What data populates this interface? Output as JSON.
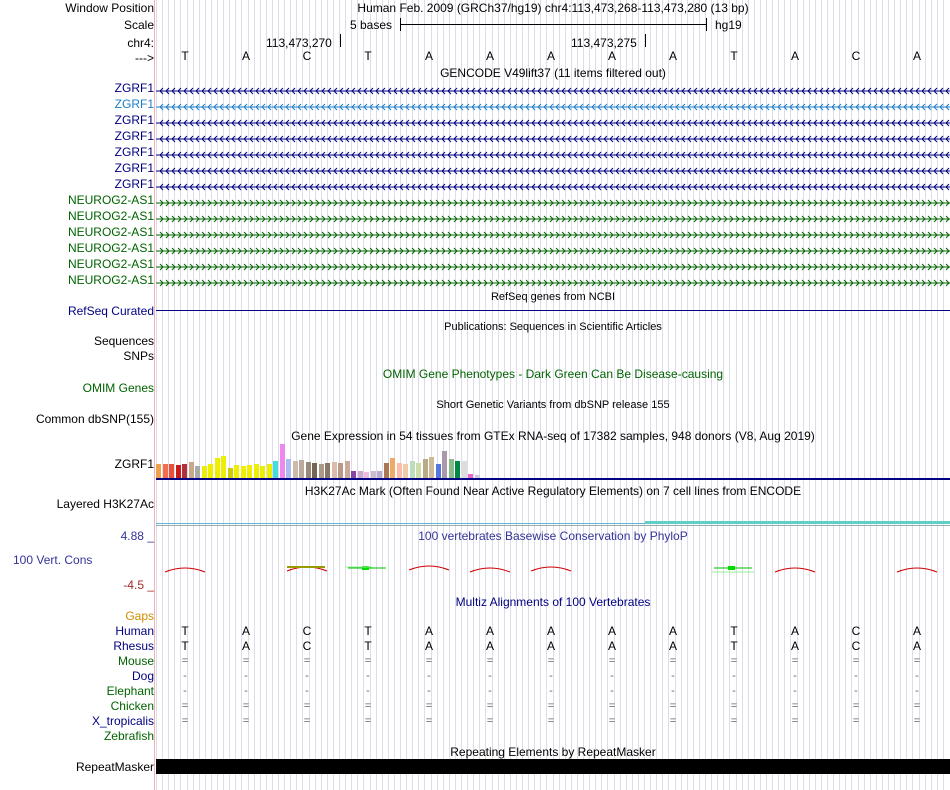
{
  "header": {
    "window_position_label": "Window Position",
    "scale_label": "Scale",
    "chr_label": "chr4:",
    "strand_label": "--->",
    "assembly_position": "Human Feb. 2009 (GRCh37/hg19)   chr4:113,473,268-113,473,280 (13 bp)",
    "scale_text": "5 bases",
    "scale_db": "hg19",
    "coord_1": "113,473,270",
    "coord_2": "113,473,275",
    "bases": [
      "T",
      "A",
      "C",
      "T",
      "A",
      "A",
      "A",
      "A",
      "A",
      "T",
      "A",
      "C",
      "A"
    ]
  },
  "gencode": {
    "title": "GENCODE V49lift37 (11 items filtered out)",
    "zgrf1_items": [
      "ZGRF1",
      "ZGRF1",
      "ZGRF1",
      "ZGRF1",
      "ZGRF1",
      "ZGRF1",
      "ZGRF1"
    ],
    "neurog_items": [
      "NEUROG2-AS1",
      "NEUROG2-AS1",
      "NEUROG2-AS1",
      "NEUROG2-AS1",
      "NEUROG2-AS1",
      "NEUROG2-AS1"
    ]
  },
  "refseq": {
    "title": "RefSeq genes from NCBI",
    "label": "RefSeq Curated"
  },
  "publications": {
    "title": "Publications: Sequences in Scientific Articles",
    "label_1": "Sequences",
    "label_2": "SNPs"
  },
  "omim": {
    "title": "OMIM Gene Phenotypes - Dark Green Can Be Disease-causing",
    "label": "OMIM Genes"
  },
  "dbsnp": {
    "title": "Short Genetic Variants from dbSNP release 155",
    "label": "Common dbSNP(155)"
  },
  "gtex": {
    "title": "Gene Expression in 54 tissues from GTEx RNA-seq of 17382 samples, 948 donors (V8, Aug 2019)",
    "label": "ZGRF1",
    "bars": [
      {
        "value": 0.4,
        "color": "#f0a04c"
      },
      {
        "value": 0.4,
        "color": "#f06e4b"
      },
      {
        "value": 0.42,
        "color": "#e8503c"
      },
      {
        "value": 0.38,
        "color": "#c91a1a"
      },
      {
        "value": 0.4,
        "color": "#b0303c"
      },
      {
        "value": 0.48,
        "color": "#c8a888"
      },
      {
        "value": 0.35,
        "color": "#aaaaaa"
      },
      {
        "value": 0.35,
        "color": "#eeee00"
      },
      {
        "value": 0.42,
        "color": "#eeee00"
      },
      {
        "value": 0.6,
        "color": "#eeee00"
      },
      {
        "value": 0.65,
        "color": "#eeee00"
      },
      {
        "value": 0.3,
        "color": "#cccc00"
      },
      {
        "value": 0.38,
        "color": "#eeee00"
      },
      {
        "value": 0.35,
        "color": "#eeee00"
      },
      {
        "value": 0.38,
        "color": "#eeee00"
      },
      {
        "value": 0.4,
        "color": "#eeee00"
      },
      {
        "value": 0.35,
        "color": "#eeee00"
      },
      {
        "value": 0.42,
        "color": "#eeee00"
      },
      {
        "value": 0.5,
        "color": "#44dddd"
      },
      {
        "value": 1.0,
        "color": "#ee88ee"
      },
      {
        "value": 0.55,
        "color": "#aabbee"
      },
      {
        "value": 0.5,
        "color": "#ccbbaa"
      },
      {
        "value": 0.52,
        "color": "#bbaa99"
      },
      {
        "value": 0.48,
        "color": "#998877"
      },
      {
        "value": 0.45,
        "color": "#776655"
      },
      {
        "value": 0.4,
        "color": "#aa9988"
      },
      {
        "value": 0.45,
        "color": "#887766"
      },
      {
        "value": 0.48,
        "color": "#ddbbaa"
      },
      {
        "value": 0.45,
        "color": "#bb9988"
      },
      {
        "value": 0.5,
        "color": "#ccaa99"
      },
      {
        "value": 0.22,
        "color": "#8844aa"
      },
      {
        "value": 0.2,
        "color": "#ccaacc"
      },
      {
        "value": 0.18,
        "color": "#eebbdd"
      },
      {
        "value": 0.2,
        "color": "#ccbbcc"
      },
      {
        "value": 0.22,
        "color": "#bbaacc"
      },
      {
        "value": 0.45,
        "color": "#aa7755"
      },
      {
        "value": 0.58,
        "color": "#eeaa66"
      },
      {
        "value": 0.45,
        "color": "#ffbbaa"
      },
      {
        "value": 0.4,
        "color": "#eeccaa"
      },
      {
        "value": 0.5,
        "color": "#bbddbb"
      },
      {
        "value": 0.45,
        "color": "#ccddaa"
      },
      {
        "value": 0.55,
        "color": "#bbaa88"
      },
      {
        "value": 0.62,
        "color": "#ccbb99"
      },
      {
        "value": 0.42,
        "color": "#5577dd"
      },
      {
        "value": 0.78,
        "color": "#aa99aa"
      },
      {
        "value": 0.55,
        "color": "#88bb88"
      },
      {
        "value": 0.5,
        "color": "#008844"
      },
      {
        "value": 0.5,
        "color": "#dddddd"
      },
      {
        "value": 0.12,
        "color": "#ee66cc"
      },
      {
        "value": 0.1,
        "color": "#ccccdd"
      }
    ]
  },
  "h3k27ac": {
    "title": "H3K27Ac Mark (Often Found Near Active Regulatory Elements) on 7 cell lines from ENCODE",
    "label": "Layered H3K27Ac"
  },
  "phylop": {
    "title": "100 vertebrates Basewise Conservation by PhyloP",
    "label": "100 Vert. Cons",
    "max_label": "4.88 _",
    "min_label": "-4.5 _",
    "scores": [
      -0.4,
      0.0,
      -0.2,
      0.5,
      -0.1,
      -0.4,
      -0.2,
      0.0,
      0.0,
      0.6,
      -0.4,
      0.0,
      -0.4
    ]
  },
  "multiz": {
    "title": "Multiz Alignments of 100 Vertebrates",
    "gaps_label": "Gaps",
    "species": [
      {
        "name": "Human",
        "color": "#000080",
        "bases": [
          "T",
          "A",
          "C",
          "T",
          "A",
          "A",
          "A",
          "A",
          "A",
          "T",
          "A",
          "C",
          "A"
        ]
      },
      {
        "name": "Rhesus",
        "color": "#000080",
        "bases": [
          "T",
          "A",
          "C",
          "T",
          "A",
          "A",
          "A",
          "A",
          "A",
          "T",
          "A",
          "C",
          "A"
        ]
      },
      {
        "name": "Mouse",
        "color": "#006400",
        "bases": [
          "=",
          "=",
          "=",
          "=",
          "=",
          "=",
          "=",
          "=",
          "=",
          "=",
          "=",
          "=",
          "="
        ]
      },
      {
        "name": "Dog",
        "color": "#000080",
        "bases": [
          "-",
          "-",
          "-",
          "-",
          "-",
          "-",
          "-",
          "-",
          "-",
          "-",
          "-",
          "-",
          "-"
        ]
      },
      {
        "name": "Elephant",
        "color": "#006400",
        "bases": [
          "-",
          "-",
          "-",
          "-",
          "-",
          "-",
          "-",
          "-",
          "-",
          "-",
          "-",
          "-",
          "-"
        ]
      },
      {
        "name": "Chicken",
        "color": "#006400",
        "bases": [
          "=",
          "=",
          "=",
          "=",
          "=",
          "=",
          "=",
          "=",
          "=",
          "=",
          "=",
          "=",
          "="
        ]
      },
      {
        "name": "X_tropicalis",
        "color": "#000080",
        "bases": [
          "=",
          "=",
          "=",
          "=",
          "=",
          "=",
          "=",
          "=",
          "=",
          "=",
          "=",
          "=",
          "="
        ]
      },
      {
        "name": "Zebrafish",
        "color": "#006400",
        "bases": [
          "",
          "",
          "",
          "",
          "",
          "",
          "",
          "",
          "",
          "",
          "",
          "",
          ""
        ]
      }
    ]
  },
  "repeatmasker": {
    "title": "Repeating Elements by RepeatMasker",
    "label": "RepeatMasker"
  },
  "colors": {
    "navy": "#000080",
    "green": "#006400",
    "blue_track": "#1e7ec8",
    "phylop_label": "#333399",
    "phylop_neg": "#a52a2a",
    "gaps": "#d18d00"
  }
}
